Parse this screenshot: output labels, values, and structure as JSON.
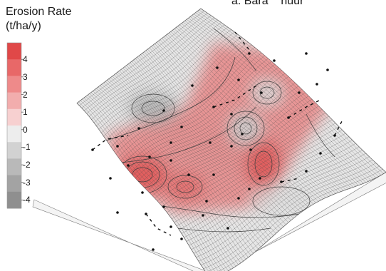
{
  "panel_label": "a. Bara    nuur",
  "chart_data": {
    "type": "heatmap",
    "subtype": "3d-surface-erosion-map",
    "legend": {
      "title_line1": "Erosion Rate",
      "title_line2": "(t/ha/y)",
      "placement": "top-left",
      "ticks": [
        4,
        3,
        2,
        1,
        0,
        -1,
        -2,
        -3,
        -4
      ],
      "tick_labels": [
        "4",
        "3",
        "2",
        "1",
        "0",
        "-1",
        "-2",
        "-3",
        "-4"
      ],
      "range": [
        -4,
        4
      ],
      "colors": [
        "#e04848",
        "#e86868",
        "#ee8a8a",
        "#f2adad",
        "#f7d0d0",
        "#ededed",
        "#d2d2d2",
        "#b9b9b9",
        "#a3a3a3",
        "#8f8f8f"
      ]
    },
    "grid": true
  }
}
